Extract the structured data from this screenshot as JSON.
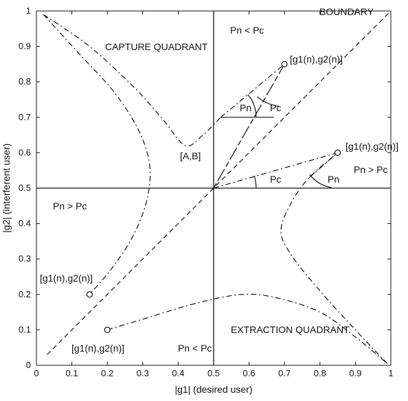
{
  "chart_data": {
    "type": "diagram",
    "xlabel": "|g1| (desired user)",
    "ylabel": "|g2| (interferent user)",
    "xlim": [
      0,
      1
    ],
    "ylim": [
      0,
      1
    ],
    "x_ticks": [
      "0",
      "0.1",
      "0.2",
      "0.3",
      "0.4",
      "0.5",
      "0.6",
      "0.7",
      "0.8",
      "0.9",
      "1"
    ],
    "y_ticks": [
      "0",
      "0.1",
      "0.2",
      "0.3",
      "0.4",
      "0.5",
      "0.6",
      "0.7",
      "0.8",
      "0.9",
      "1"
    ],
    "center_label": "[A,B]",
    "center": [
      0.5,
      0.5
    ],
    "regions": {
      "top": "Pn < Pc",
      "bottom": "Pn < Pc",
      "left": "Pn > Pc",
      "right": "Pn > Pc",
      "capture": "CAPTURE QUADRANT",
      "extraction": "EXTRACTION QUADRANT",
      "boundary": "BOUNDARY"
    },
    "points": [
      {
        "label": "[g1(n),g2(n)]",
        "x": 0.7,
        "y": 0.85
      },
      {
        "label": "[g1(n),g2(n)]",
        "x": 0.85,
        "y": 0.6
      },
      {
        "label": "[g1(n),g2(n)]",
        "x": 0.15,
        "y": 0.2
      },
      {
        "label": "[g1(n),g2(n)]",
        "x": 0.2,
        "y": 0.1
      }
    ],
    "angle_labels": [
      {
        "text": "Pn"
      },
      {
        "text": "Pc"
      },
      {
        "text": "Pc"
      },
      {
        "text": "Pn"
      }
    ],
    "boundary_line": [
      [
        0.03,
        0.03
      ],
      [
        1.0,
        1.0
      ]
    ],
    "curves": {
      "capture_upper": [
        [
          0.02,
          0.99
        ],
        [
          0.15,
          0.9
        ],
        [
          0.28,
          0.78
        ],
        [
          0.36,
          0.69
        ],
        [
          0.42,
          0.62
        ],
        [
          0.47,
          0.65
        ],
        [
          0.52,
          0.7
        ]
      ],
      "capture_left": [
        [
          0.02,
          0.99
        ],
        [
          0.12,
          0.88
        ],
        [
          0.22,
          0.77
        ],
        [
          0.29,
          0.66
        ],
        [
          0.32,
          0.56
        ],
        [
          0.31,
          0.46
        ],
        [
          0.27,
          0.36
        ],
        [
          0.21,
          0.27
        ],
        [
          0.15,
          0.2
        ]
      ],
      "extraction_lower": [
        [
          0.2,
          0.1
        ],
        [
          0.3,
          0.13
        ],
        [
          0.45,
          0.175
        ],
        [
          0.58,
          0.2
        ],
        [
          0.68,
          0.19
        ],
        [
          0.8,
          0.15
        ],
        [
          0.9,
          0.08
        ],
        [
          0.99,
          0.005
        ]
      ],
      "extraction_right": [
        [
          0.99,
          0.005
        ],
        [
          0.9,
          0.1
        ],
        [
          0.8,
          0.21
        ],
        [
          0.72,
          0.31
        ],
        [
          0.69,
          0.38
        ],
        [
          0.72,
          0.46
        ],
        [
          0.77,
          0.53
        ],
        [
          0.85,
          0.6
        ]
      ]
    },
    "construction_lines": {
      "dashdot": [
        [
          [
            0.5,
            0.5
          ],
          [
            0.7,
            0.85
          ]
        ],
        [
          [
            0.52,
            0.7
          ],
          [
            0.7,
            0.85
          ]
        ],
        [
          [
            0.5,
            0.5
          ],
          [
            0.85,
            0.6
          ]
        ],
        [
          [
            0.77,
            0.53
          ],
          [
            0.85,
            0.6
          ]
        ]
      ],
      "solid": [
        [
          [
            0.52,
            0.7
          ],
          [
            0.67,
            0.7
          ]
        ]
      ],
      "dashed": [
        [
          [
            0.5,
            0.5
          ],
          [
            0.7,
            0.85
          ]
        ]
      ]
    }
  }
}
